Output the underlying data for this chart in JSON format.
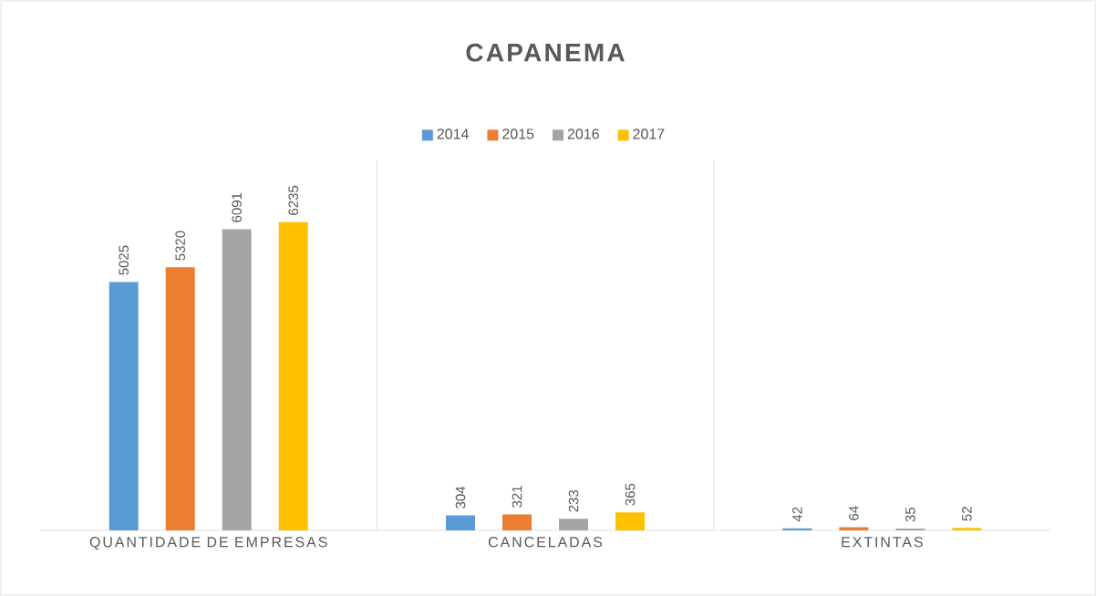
{
  "chart_data": {
    "type": "bar",
    "title": "CAPANEMA",
    "categories": [
      "QUANTIDADE DE EMPRESAS",
      "CANCELADAS",
      "EXTINTAS"
    ],
    "series": [
      {
        "name": "2014",
        "color": "#5b9bd5",
        "values": [
          5025,
          304,
          42
        ]
      },
      {
        "name": "2015",
        "color": "#ed7d31",
        "values": [
          5320,
          321,
          64
        ]
      },
      {
        "name": "2016",
        "color": "#a5a5a5",
        "values": [
          6091,
          233,
          35
        ]
      },
      {
        "name": "2017",
        "color": "#ffc000",
        "values": [
          6235,
          365,
          52
        ]
      }
    ],
    "data_labels": true,
    "legend": "top",
    "grid": false
  }
}
